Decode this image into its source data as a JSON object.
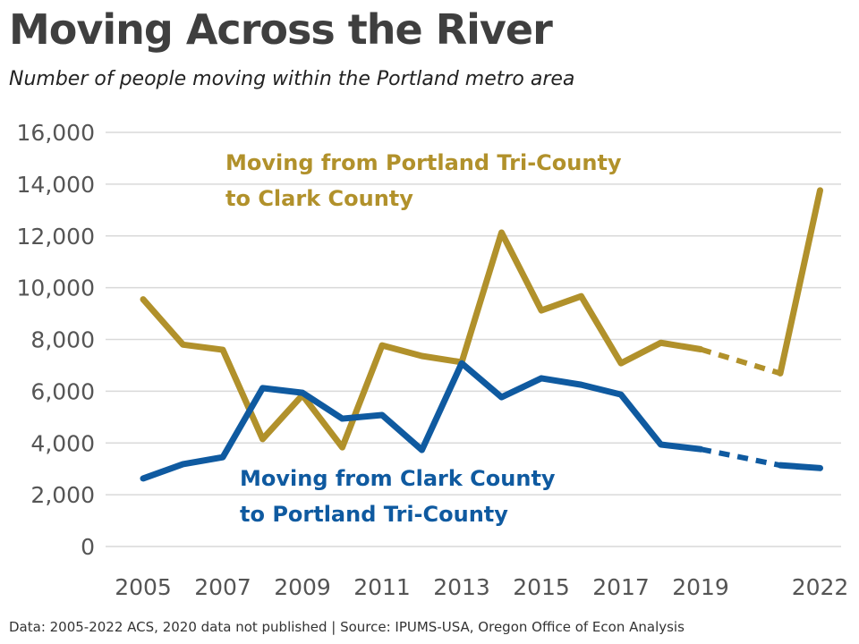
{
  "chart_data": {
    "type": "line",
    "title": "Moving Across the River",
    "subtitle": "Number of people moving within the Portland metro area",
    "footer": "Data: 2005-2022 ACS, 2020 data not published | Source: IPUMS-USA, Oregon Office of Econ Analysis",
    "xlabel": "",
    "ylabel": "",
    "ylim": [
      0,
      16000
    ],
    "xlim": [
      2005,
      2022
    ],
    "y_ticks": [
      "0",
      "2,000",
      "4,000",
      "6,000",
      "8,000",
      "10,000",
      "12,000",
      "14,000",
      "16,000"
    ],
    "x_ticks": [
      "2005",
      "2007",
      "2009",
      "2011",
      "2013",
      "2015",
      "2017",
      "2019",
      "2022"
    ],
    "grid": "horizontal",
    "legend": "direct labels",
    "x": [
      2005,
      2006,
      2007,
      2008,
      2009,
      2010,
      2011,
      2012,
      2013,
      2014,
      2015,
      2016,
      2017,
      2018,
      2019,
      2021,
      2022
    ],
    "dashed_gap": [
      2019,
      2021
    ],
    "series": [
      {
        "name": "Moving from Portland Tri-County to Clark County",
        "label_lines": [
          "Moving from Portland Tri-County",
          "to Clark County"
        ],
        "color": "#B1912B",
        "values": [
          9550,
          7800,
          7600,
          4150,
          5850,
          3830,
          7770,
          7360,
          7120,
          12130,
          9120,
          9670,
          7080,
          7870,
          7620,
          6690,
          13760
        ]
      },
      {
        "name": "Moving from Clark County to Portland Tri-County",
        "label_lines": [
          "Moving from Clark County",
          "to Portland Tri-County"
        ],
        "color": "#0F5AA0",
        "values": [
          2630,
          3180,
          3450,
          6120,
          5940,
          4940,
          5080,
          3730,
          7080,
          5770,
          6500,
          6250,
          5870,
          3940,
          3760,
          3140,
          3030
        ]
      }
    ]
  }
}
